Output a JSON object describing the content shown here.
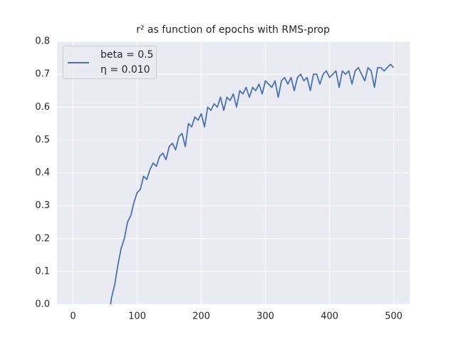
{
  "chart_data": {
    "type": "line",
    "title": "r² as function of epochs with RMS-prop",
    "x": [
      55,
      60,
      65,
      70,
      75,
      80,
      85,
      90,
      95,
      100,
      105,
      110,
      115,
      120,
      125,
      130,
      135,
      140,
      145,
      150,
      155,
      160,
      165,
      170,
      175,
      180,
      185,
      190,
      195,
      200,
      205,
      210,
      215,
      220,
      225,
      230,
      235,
      240,
      245,
      250,
      255,
      260,
      265,
      270,
      275,
      280,
      285,
      290,
      295,
      300,
      305,
      310,
      315,
      320,
      325,
      330,
      335,
      340,
      345,
      350,
      355,
      360,
      365,
      370,
      375,
      380,
      385,
      390,
      395,
      400,
      405,
      410,
      415,
      420,
      425,
      430,
      435,
      440,
      445,
      450,
      455,
      460,
      465,
      470,
      475,
      480,
      485,
      490,
      495,
      500
    ],
    "series": [
      {
        "name": "beta = 0.5\nη = 0.010",
        "color": "#4c72b0",
        "values": [
          -0.05,
          0.02,
          0.06,
          0.12,
          0.17,
          0.2,
          0.25,
          0.27,
          0.31,
          0.34,
          0.35,
          0.39,
          0.38,
          0.41,
          0.43,
          0.42,
          0.45,
          0.46,
          0.44,
          0.48,
          0.49,
          0.47,
          0.51,
          0.52,
          0.48,
          0.55,
          0.54,
          0.57,
          0.56,
          0.58,
          0.54,
          0.6,
          0.59,
          0.61,
          0.6,
          0.63,
          0.59,
          0.63,
          0.62,
          0.64,
          0.6,
          0.65,
          0.64,
          0.66,
          0.63,
          0.66,
          0.65,
          0.67,
          0.64,
          0.68,
          0.67,
          0.66,
          0.68,
          0.63,
          0.68,
          0.69,
          0.67,
          0.69,
          0.65,
          0.69,
          0.7,
          0.68,
          0.69,
          0.65,
          0.7,
          0.7,
          0.67,
          0.7,
          0.71,
          0.69,
          0.7,
          0.71,
          0.66,
          0.71,
          0.7,
          0.71,
          0.67,
          0.71,
          0.72,
          0.7,
          0.68,
          0.72,
          0.71,
          0.66,
          0.72,
          0.72,
          0.71,
          0.72,
          0.73,
          0.72
        ]
      }
    ],
    "xlim": [
      -25,
      525
    ],
    "ylim": [
      0,
      0.8
    ],
    "xticks": [
      0,
      100,
      200,
      300,
      400,
      500
    ],
    "yticks": [
      {
        "value": 0,
        "label": "0.0"
      },
      0.1,
      0.2,
      0.3,
      0.4,
      0.5,
      0.6,
      0.7,
      0.8
    ],
    "grid": true,
    "legend": "upper left",
    "background": "#eaeaf2"
  }
}
